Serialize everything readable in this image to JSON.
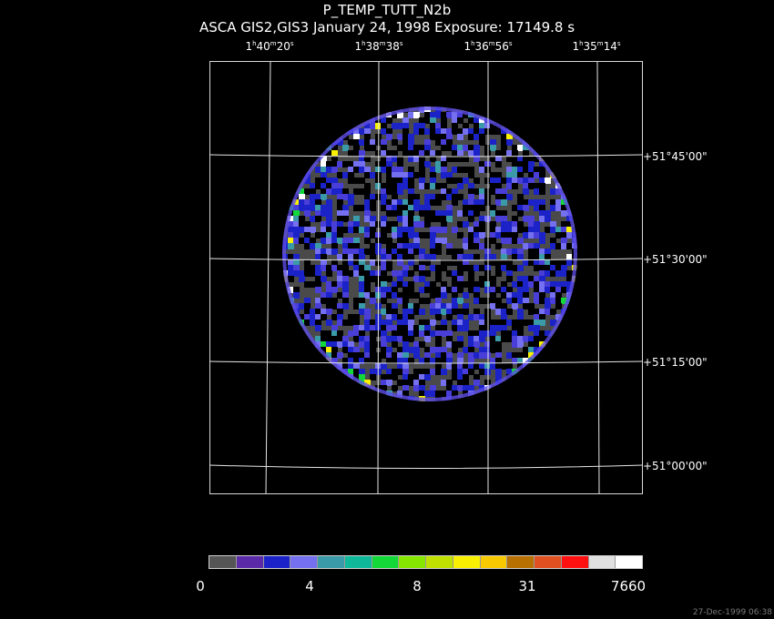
{
  "title": "P_TEMP_TUTT_N2b",
  "subtitle": "ASCA GIS2,GIS3 January 24, 1998 Exposure: 17149.8 s",
  "ra_ticks": [
    {
      "h": "1",
      "m": "40",
      "s": "20"
    },
    {
      "h": "1",
      "m": "38",
      "s": "38"
    },
    {
      "h": "1",
      "m": "36",
      "s": "56"
    },
    {
      "h": "1",
      "m": "35",
      "s": "14"
    }
  ],
  "dec_ticks": [
    "+51°45'00\"",
    "+51°30'00\"",
    "+51°15'00\"",
    "+51°00'00\""
  ],
  "colorbar": {
    "colors": [
      "#555555",
      "#5a2aa8",
      "#1a22c8",
      "#7470f0",
      "#3a9aa8",
      "#10b89a",
      "#12d838",
      "#86e800",
      "#c0e000",
      "#f8f000",
      "#f8c800",
      "#b87000",
      "#e05020",
      "#ff1010",
      "#e0e0e0",
      "#ffffff"
    ],
    "tick_labels": [
      "0",
      "4",
      "8",
      "31",
      "7660"
    ]
  },
  "timestamp": "27-Dec-1999 06:38"
}
